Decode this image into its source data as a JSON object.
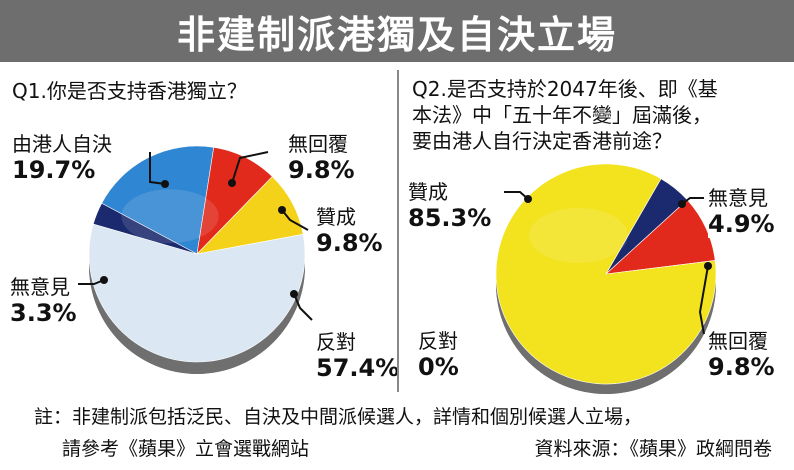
{
  "title": "非建制派港獨及自決立場",
  "q1": {
    "question": "Q1.你是否支持香港獨立？",
    "labels": {
      "self_determination": {
        "name": "由港人自決",
        "pct": "19.7%"
      },
      "no_reply": {
        "name": "無回覆",
        "pct": "9.8%"
      },
      "agree": {
        "name": "贊成",
        "pct": "9.8%"
      },
      "no_opinion": {
        "name": "無意見",
        "pct": "3.3%"
      },
      "oppose": {
        "name": "反對",
        "pct": "57.4%"
      }
    }
  },
  "q2": {
    "question_line1": "Q2.是否支持於2047年後、即《基",
    "question_line2": "本法》中「五十年不變」屆滿後，",
    "question_line3": "要由港人自行決定香港前途？",
    "labels": {
      "agree": {
        "name": "贊成",
        "pct": "85.3%"
      },
      "no_opinion": {
        "name": "無意見",
        "pct": "4.9%"
      },
      "oppose": {
        "name": "反對",
        "pct": "0%"
      },
      "no_reply": {
        "name": "無回覆",
        "pct": "9.8%"
      }
    }
  },
  "footer": {
    "note_line1": "註：非建制派包括泛民、自決及中間派候選人，詳情和個別候選人立場，",
    "note_line2": "請參考《蘋果》立會選戰網站",
    "source": "資料來源：《蘋果》政綱問卷"
  },
  "chart_data": [
    {
      "type": "pie",
      "title": "Q1.你是否支持香港獨立？",
      "slices": [
        {
          "label": "由港人自決",
          "value": 19.7,
          "color": "#2f86d2"
        },
        {
          "label": "無回覆",
          "value": 9.8,
          "color": "#e12a1c"
        },
        {
          "label": "贊成",
          "value": 9.8,
          "color": "#f5d21a"
        },
        {
          "label": "反對",
          "value": 57.4,
          "color": "#dbe8f3"
        },
        {
          "label": "無意見",
          "value": 3.3,
          "color": "#1b2a6e"
        }
      ]
    },
    {
      "type": "pie",
      "title": "Q2.是否支持於2047年後、即《基本法》中「五十年不變」屆滿後，要由港人自行決定香港前途？",
      "slices": [
        {
          "label": "無意見",
          "value": 4.9,
          "color": "#1b2a6e"
        },
        {
          "label": "無回覆",
          "value": 9.8,
          "color": "#e12a1c"
        },
        {
          "label": "反對",
          "value": 0,
          "color": "#dbe8f3"
        },
        {
          "label": "贊成",
          "value": 85.3,
          "color": "#f3e21e"
        }
      ]
    }
  ]
}
